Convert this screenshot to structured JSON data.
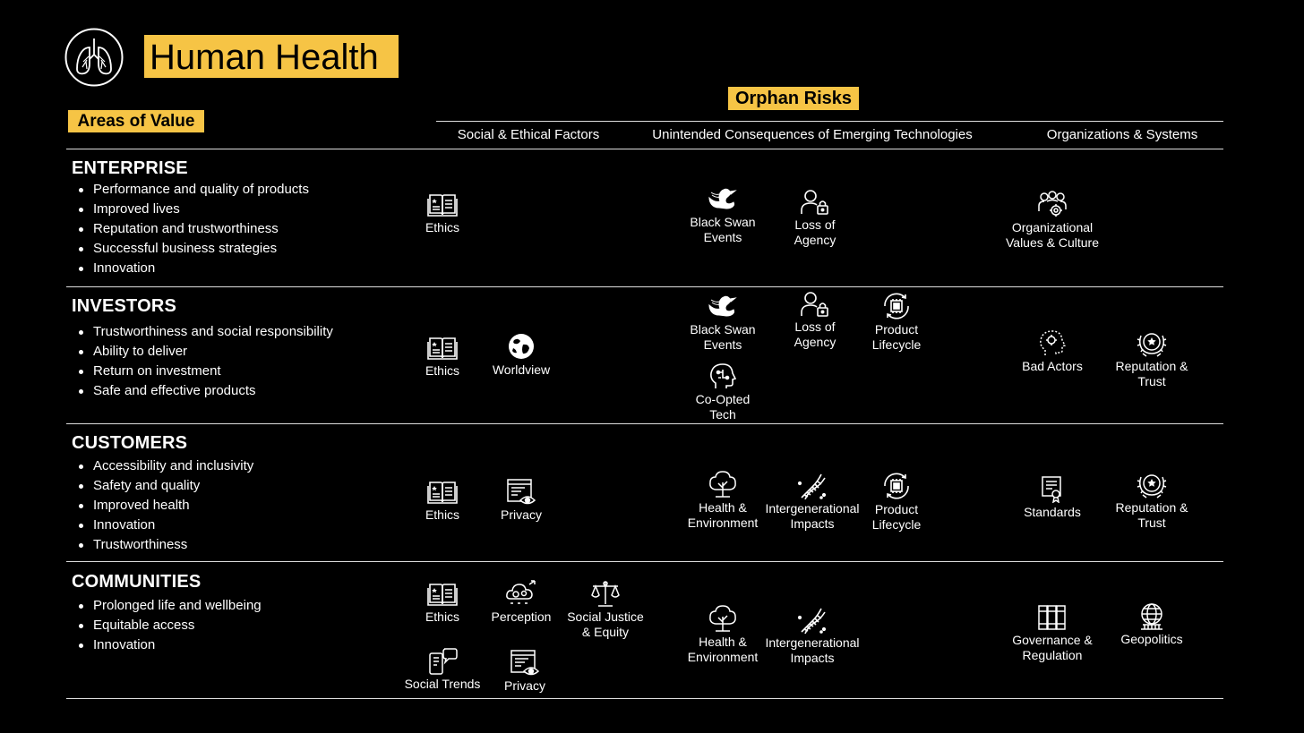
{
  "header": {
    "title": "Human Health",
    "logo_icon": "lungs-icon",
    "orphan_risks": "Orphan Risks",
    "areas_of_value": "Areas of Value",
    "accent_color": "#f6c445"
  },
  "columns": {
    "social": "Social & Ethical Factors",
    "unintended": "Unintended Consequences of Emerging Technologies",
    "orgs": "Organizations & Systems"
  },
  "sections": [
    {
      "title": "ENTERPRISE",
      "bullets": [
        "Performance and quality of products",
        "Improved lives",
        "Reputation and trustworthiness",
        "Successful business strategies",
        "Innovation"
      ]
    },
    {
      "title": "INVESTORS",
      "bullets": [
        "Trustworthiness and social responsibility",
        "Ability to deliver",
        "Return on investment",
        "Safe and effective products"
      ]
    },
    {
      "title": "CUSTOMERS",
      "bullets": [
        "Accessibility and inclusivity",
        "Safety and quality",
        "Improved health",
        "Innovation",
        "Trustworthiness"
      ]
    },
    {
      "title": "COMMUNITIES",
      "bullets": [
        "Prolonged life and wellbeing",
        "Equitable access",
        "Innovation"
      ]
    }
  ],
  "risks": {
    "enterprise": {
      "social": [
        {
          "label": "Ethics",
          "icon": "book-icon"
        }
      ],
      "unintended": [
        {
          "label": "Black Swan\nEvents",
          "icon": "swan-icon"
        },
        {
          "label": "Loss of\nAgency",
          "icon": "person-lock-icon"
        }
      ],
      "orgs": [
        {
          "label": "Organizational\nValues & Culture",
          "icon": "people-gear-icon"
        }
      ]
    },
    "investors": {
      "social": [
        {
          "label": "Ethics",
          "icon": "book-icon"
        },
        {
          "label": "Worldview",
          "icon": "globe-icon"
        }
      ],
      "unintended": [
        {
          "label": "Black Swan\nEvents",
          "icon": "swan-icon"
        },
        {
          "label": "Loss of\nAgency",
          "icon": "person-lock-icon"
        },
        {
          "label": "Product\nLifecycle",
          "icon": "chip-cycle-icon"
        },
        {
          "label": "Co-Opted\nTech",
          "icon": "head-circuit-icon"
        }
      ],
      "orgs": [
        {
          "label": "Bad Actors",
          "icon": "head-bad-actor-icon"
        },
        {
          "label": "Reputation &\nTrust",
          "icon": "laurel-star-icon"
        }
      ]
    },
    "customers": {
      "social": [
        {
          "label": "Ethics",
          "icon": "book-icon"
        },
        {
          "label": "Privacy",
          "icon": "document-eye-icon"
        }
      ],
      "unintended": [
        {
          "label": "Health &\nEnvironment",
          "icon": "tree-icon"
        },
        {
          "label": "Intergenerational\nImpacts",
          "icon": "dna-icon"
        },
        {
          "label": "Product\nLifecycle",
          "icon": "chip-cycle-icon"
        }
      ],
      "orgs": [
        {
          "label": "Standards",
          "icon": "certificate-icon"
        },
        {
          "label": "Reputation &\nTrust",
          "icon": "laurel-star-icon"
        }
      ]
    },
    "communities": {
      "social": [
        {
          "label": "Ethics",
          "icon": "book-icon"
        },
        {
          "label": "Perception",
          "icon": "cloud-gears-icon"
        },
        {
          "label": "Social Justice\n& Equity",
          "icon": "scales-icon"
        },
        {
          "label": "Social Trends",
          "icon": "phone-chat-icon"
        },
        {
          "label": "Privacy",
          "icon": "document-eye-icon"
        }
      ],
      "unintended": [
        {
          "label": "Health &\nEnvironment",
          "icon": "tree-icon"
        },
        {
          "label": "Intergenerational\nImpacts",
          "icon": "dna-icon"
        }
      ],
      "orgs": [
        {
          "label": "Governance &\nRegulation",
          "icon": "books-icon"
        },
        {
          "label": "Geopolitics",
          "icon": "globe-building-icon"
        }
      ]
    }
  }
}
